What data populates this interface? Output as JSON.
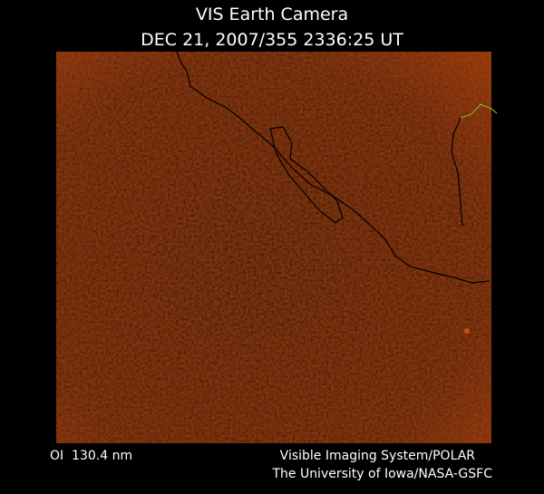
{
  "header": {
    "title": "VIS Earth Camera",
    "timestamp": "DEC 21, 2007/355 2336:25 UT"
  },
  "footer": {
    "filter": "OI  130.4 nm",
    "credit_line1": "Visible Imaging System/POLAR",
    "credit_line2": "The University of Iowa/NASA-GSFC"
  }
}
